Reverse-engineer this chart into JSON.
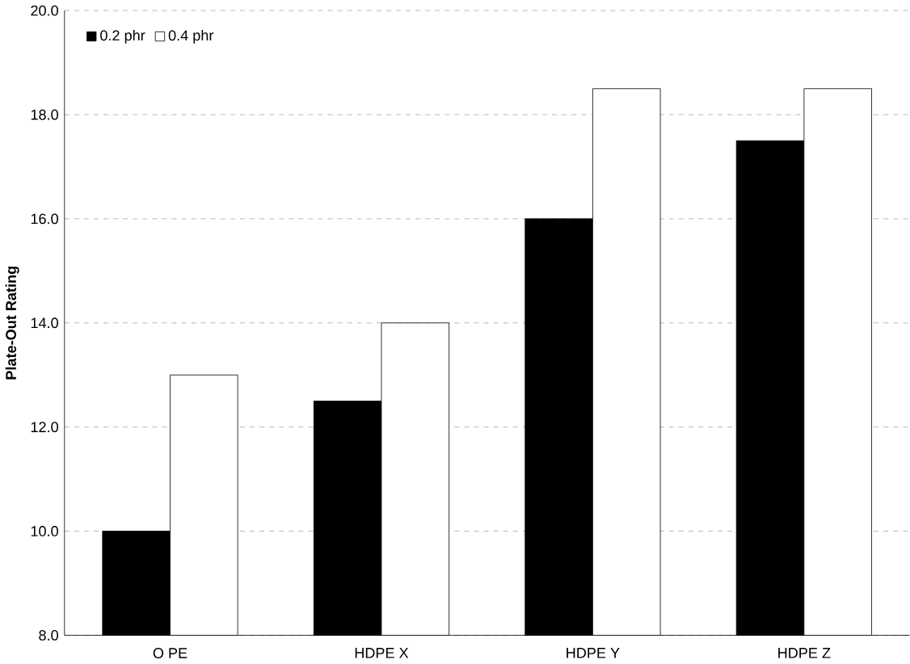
{
  "chart_data": {
    "type": "bar",
    "ylabel": "Plate-Out Rating",
    "categories": [
      "O PE",
      "HDPE X",
      "HDPE Y",
      "HDPE Z"
    ],
    "series": [
      {
        "name": "0.2 phr",
        "color": "#000000",
        "values": [
          10.0,
          12.5,
          16.0,
          17.5
        ]
      },
      {
        "name": "0.4 phr",
        "color": "#ffffff",
        "values": [
          13.0,
          14.0,
          18.5,
          18.5
        ]
      }
    ],
    "ylim": [
      8,
      20
    ],
    "yticks": [
      {
        "value": 8,
        "label": "8.0"
      },
      {
        "value": 10,
        "label": "10.0"
      },
      {
        "value": 12,
        "label": "12.0"
      },
      {
        "value": 14,
        "label": "14.0"
      },
      {
        "value": 16,
        "label": "16.0"
      },
      {
        "value": 18,
        "label": "18.0"
      },
      {
        "value": 20,
        "label": "20.0"
      }
    ],
    "grid": "y",
    "legend": "top left"
  }
}
